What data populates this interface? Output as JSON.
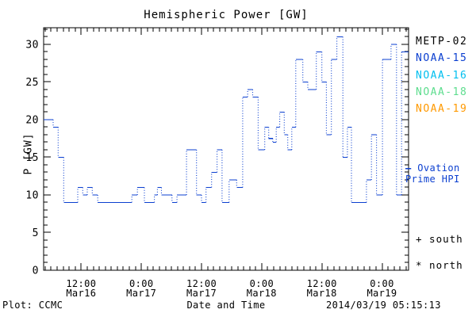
{
  "chart": {
    "title": "Hemispheric Power [GW]",
    "ylabel": "P [GW]",
    "xlabel": "Date and Time",
    "footer_left": "Plot: CCMC",
    "footer_right": "2014/03/19 05:15:13",
    "line_color": "#0b3fd0",
    "axis_color": "#000000"
  },
  "legend": {
    "satellites": [
      {
        "label": "METP-02",
        "color": "#000000"
      },
      {
        "label": "NOAA-15",
        "color": "#0b3fd0"
      },
      {
        "label": "NOAA-16",
        "color": "#00bfef"
      },
      {
        "label": "NOAA-18",
        "color": "#5ddd8e"
      },
      {
        "label": "NOAA-19",
        "color": "#ff9900"
      }
    ],
    "ovation": {
      "marker": "—",
      "line1": "Ovation",
      "line2": "Prime HPI",
      "color": "#0b3fd0"
    },
    "south": "+ south",
    "north": "* north"
  },
  "chart_data": {
    "type": "line",
    "style": "hourly steps; horizontal segments solid, vertical connectors dotted",
    "title": "Hemispheric Power [GW]",
    "xlabel": "Date and Time",
    "ylabel": "P [GW]",
    "ylim": [
      0,
      32.2
    ],
    "yticks": [
      0,
      5,
      10,
      15,
      20,
      25,
      30
    ],
    "y_minor_step": 1,
    "xlim_hours": [
      4.5,
      77.3
    ],
    "x_minor_step_hours": 1.2,
    "x_hours_reference": "hours after Mar16 00:00 (axis labeled 2014/03/16-03/19 UT)",
    "xticks": [
      {
        "hour": 12,
        "time": "12:00",
        "date": "Mar16"
      },
      {
        "hour": 24,
        "time": "0:00",
        "date": "Mar17"
      },
      {
        "hour": 36,
        "time": "12:00",
        "date": "Mar17"
      },
      {
        "hour": 48,
        "time": "0:00",
        "date": "Mar18"
      },
      {
        "hour": 60,
        "time": "12:00",
        "date": "Mar18"
      },
      {
        "hour": 72,
        "time": "0:00",
        "date": "Mar19"
      }
    ],
    "legend_position": "right, outside plot",
    "grid": false,
    "series": [
      {
        "name": "Ovation Prime HPI",
        "color": "#0b3fd0",
        "end_hour": 77.3,
        "steps_hour_gw": [
          [
            4.5,
            20
          ],
          [
            6.4,
            19
          ],
          [
            7.4,
            15
          ],
          [
            8.5,
            9
          ],
          [
            11.3,
            11
          ],
          [
            12.3,
            10
          ],
          [
            13.2,
            11
          ],
          [
            14.2,
            10
          ],
          [
            15.3,
            9
          ],
          [
            22.1,
            10
          ],
          [
            23.2,
            11
          ],
          [
            24.6,
            9
          ],
          [
            26.6,
            10
          ],
          [
            27.2,
            11
          ],
          [
            28.0,
            10
          ],
          [
            30.1,
            9
          ],
          [
            31.1,
            10
          ],
          [
            33.0,
            16
          ],
          [
            35.0,
            10
          ],
          [
            36.0,
            9
          ],
          [
            36.9,
            11
          ],
          [
            38.0,
            13
          ],
          [
            39.1,
            16
          ],
          [
            40.1,
            9
          ],
          [
            41.5,
            12
          ],
          [
            43.0,
            11
          ],
          [
            44.2,
            23
          ],
          [
            45.2,
            24
          ],
          [
            46.2,
            23
          ],
          [
            47.3,
            16
          ],
          [
            48.6,
            19
          ],
          [
            49.4,
            17.5
          ],
          [
            50.2,
            17
          ],
          [
            50.9,
            19
          ],
          [
            51.6,
            21
          ],
          [
            52.5,
            18
          ],
          [
            53.2,
            16
          ],
          [
            54.0,
            19
          ],
          [
            54.8,
            28
          ],
          [
            56.2,
            25
          ],
          [
            57.2,
            24
          ],
          [
            58.9,
            29
          ],
          [
            60.0,
            25
          ],
          [
            60.9,
            18
          ],
          [
            61.9,
            28
          ],
          [
            63.0,
            31
          ],
          [
            64.2,
            15
          ],
          [
            65.1,
            19
          ],
          [
            65.9,
            9
          ],
          [
            68.9,
            12
          ],
          [
            69.9,
            18
          ],
          [
            70.9,
            10
          ],
          [
            72.1,
            28
          ],
          [
            73.8,
            30
          ],
          [
            74.9,
            10
          ],
          [
            75.9,
            29
          ]
        ]
      }
    ]
  }
}
